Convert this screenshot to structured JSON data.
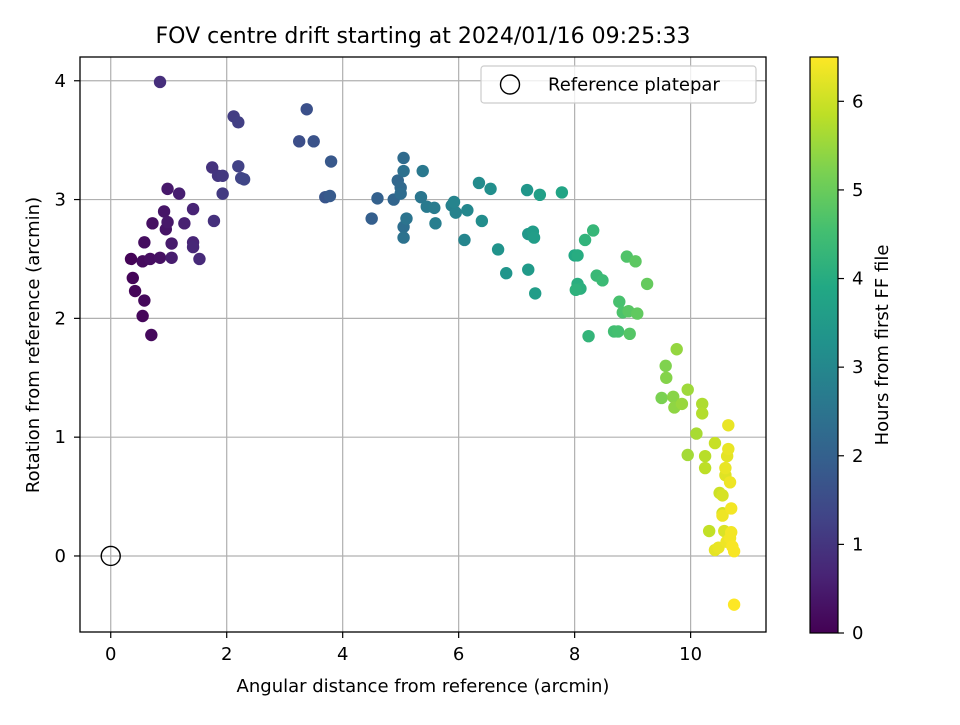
{
  "chart_data": {
    "type": "scatter",
    "title": "FOV centre drift starting at 2024/01/16 09:25:33",
    "xlabel": "Angular distance from reference (arcmin)",
    "ylabel": "Rotation from reference (arcmin)",
    "xlim": [
      -0.53,
      11.3
    ],
    "ylim": [
      -0.64,
      4.2
    ],
    "xticks": [
      0,
      2,
      4,
      6,
      8,
      10
    ],
    "yticks": [
      0,
      1,
      2,
      3,
      4
    ],
    "grid": true,
    "legend": {
      "placement": "top-right",
      "entries": [
        {
          "label": "Reference platepar",
          "marker": "open-circle",
          "x": 0,
          "y": 0
        }
      ]
    },
    "colorbar": {
      "label": "Hours from first FF file",
      "range": [
        0,
        6.5
      ],
      "ticks": [
        0,
        1,
        2,
        3,
        4,
        5,
        6
      ],
      "colormap": "viridis"
    },
    "series": [
      {
        "marker": "filled-circle",
        "points": [
          [
            0.35,
            2.5,
            0.05
          ],
          [
            0.38,
            2.34,
            0.08
          ],
          [
            0.42,
            2.23,
            0.1
          ],
          [
            0.55,
            2.02,
            0.12
          ],
          [
            0.58,
            2.15,
            0.14
          ],
          [
            0.7,
            1.86,
            0.15
          ],
          [
            0.55,
            2.48,
            0.18
          ],
          [
            0.58,
            2.64,
            0.22
          ],
          [
            0.68,
            2.5,
            0.25
          ],
          [
            0.72,
            2.8,
            0.28
          ],
          [
            0.85,
            2.51,
            0.3
          ],
          [
            0.95,
            2.75,
            0.35
          ],
          [
            0.92,
            2.9,
            0.38
          ],
          [
            0.98,
            2.81,
            0.42
          ],
          [
            0.98,
            3.09,
            0.45
          ],
          [
            1.05,
            2.63,
            0.48
          ],
          [
            1.05,
            2.51,
            0.52
          ],
          [
            1.18,
            3.05,
            0.55
          ],
          [
            1.27,
            2.8,
            0.6
          ],
          [
            1.42,
            2.92,
            0.65
          ],
          [
            1.42,
            2.64,
            0.68
          ],
          [
            1.42,
            2.6,
            0.72
          ],
          [
            1.53,
            2.5,
            0.78
          ],
          [
            0.85,
            3.99,
            0.85
          ],
          [
            1.78,
            2.82,
            0.9
          ],
          [
            1.75,
            3.27,
            0.95
          ],
          [
            1.85,
            3.2,
            1.0
          ],
          [
            1.93,
            3.2,
            1.05
          ],
          [
            1.93,
            3.05,
            1.1
          ],
          [
            2.12,
            3.7,
            1.15
          ],
          [
            2.2,
            3.65,
            1.2
          ],
          [
            2.2,
            3.28,
            1.25
          ],
          [
            2.25,
            3.18,
            1.3
          ],
          [
            2.3,
            3.17,
            1.35
          ],
          [
            3.25,
            3.49,
            1.55
          ],
          [
            3.38,
            3.76,
            1.6
          ],
          [
            3.5,
            3.49,
            1.65
          ],
          [
            3.7,
            3.02,
            1.72
          ],
          [
            3.8,
            3.32,
            1.78
          ],
          [
            3.78,
            3.03,
            1.82
          ],
          [
            4.5,
            2.84,
            1.95
          ],
          [
            4.6,
            3.01,
            2.0
          ],
          [
            4.88,
            3.0,
            2.1
          ],
          [
            4.95,
            3.16,
            2.15
          ],
          [
            5.0,
            3.1,
            2.2
          ],
          [
            5.05,
            3.35,
            2.25
          ],
          [
            5.0,
            3.05,
            2.3
          ],
          [
            5.05,
            2.77,
            2.35
          ],
          [
            5.05,
            3.24,
            2.4
          ],
          [
            5.05,
            2.68,
            2.45
          ],
          [
            5.1,
            2.84,
            2.5
          ],
          [
            5.35,
            3.02,
            2.55
          ],
          [
            5.38,
            3.24,
            2.6
          ],
          [
            5.45,
            2.94,
            2.65
          ],
          [
            5.58,
            2.93,
            2.7
          ],
          [
            5.6,
            2.8,
            2.75
          ],
          [
            5.88,
            2.95,
            2.8
          ],
          [
            5.95,
            2.89,
            2.85
          ],
          [
            5.92,
            2.98,
            2.9
          ],
          [
            6.1,
            2.66,
            2.95
          ],
          [
            6.15,
            2.91,
            3.0
          ],
          [
            6.35,
            3.14,
            3.1
          ],
          [
            6.4,
            2.82,
            3.15
          ],
          [
            6.55,
            3.09,
            3.2
          ],
          [
            6.68,
            2.58,
            3.3
          ],
          [
            6.82,
            2.38,
            3.35
          ],
          [
            7.18,
            3.08,
            3.4
          ],
          [
            7.2,
            2.71,
            3.45
          ],
          [
            7.2,
            2.41,
            3.5
          ],
          [
            7.28,
            2.73,
            3.55
          ],
          [
            7.3,
            2.68,
            3.58
          ],
          [
            7.32,
            2.21,
            3.6
          ],
          [
            7.4,
            3.04,
            3.65
          ],
          [
            7.78,
            3.06,
            3.8
          ],
          [
            8.0,
            2.53,
            3.9
          ],
          [
            8.05,
            2.53,
            4.0
          ],
          [
            8.05,
            2.29,
            4.05
          ],
          [
            8.1,
            2.25,
            4.1
          ],
          [
            8.02,
            2.24,
            4.15
          ],
          [
            8.18,
            2.66,
            4.2
          ],
          [
            8.24,
            1.85,
            4.25
          ],
          [
            8.32,
            2.74,
            4.3
          ],
          [
            8.38,
            2.36,
            4.35
          ],
          [
            8.48,
            2.32,
            4.4
          ],
          [
            8.68,
            1.89,
            4.5
          ],
          [
            8.75,
            1.89,
            4.55
          ],
          [
            8.77,
            2.14,
            4.6
          ],
          [
            8.83,
            2.05,
            4.65
          ],
          [
            8.9,
            2.52,
            4.7
          ],
          [
            8.95,
            1.87,
            4.75
          ],
          [
            8.93,
            2.06,
            4.8
          ],
          [
            9.05,
            2.48,
            4.85
          ],
          [
            9.08,
            2.04,
            4.9
          ],
          [
            9.25,
            2.29,
            4.95
          ],
          [
            9.5,
            1.33,
            5.2
          ],
          [
            9.57,
            1.6,
            5.25
          ],
          [
            9.58,
            1.5,
            5.3
          ],
          [
            9.7,
            1.34,
            5.35
          ],
          [
            9.72,
            1.25,
            5.4
          ],
          [
            9.76,
            1.74,
            5.45
          ],
          [
            9.85,
            1.28,
            5.5
          ],
          [
            9.95,
            1.4,
            5.55
          ],
          [
            9.95,
            0.85,
            5.6
          ],
          [
            10.1,
            1.03,
            5.65
          ],
          [
            10.2,
            1.28,
            5.7
          ],
          [
            10.2,
            1.2,
            5.75
          ],
          [
            10.25,
            0.84,
            5.8
          ],
          [
            10.25,
            0.74,
            5.85
          ],
          [
            10.32,
            0.21,
            5.9
          ],
          [
            10.42,
            0.95,
            5.95
          ],
          [
            10.5,
            0.53,
            6.0
          ],
          [
            10.55,
            0.36,
            6.05
          ],
          [
            10.55,
            0.51,
            6.1
          ],
          [
            10.58,
            0.21,
            6.15
          ],
          [
            10.6,
            0.68,
            6.2
          ],
          [
            10.63,
            0.84,
            6.25
          ],
          [
            10.6,
            0.74,
            6.3
          ],
          [
            10.42,
            0.05,
            6.25
          ],
          [
            10.48,
            0.07,
            6.3
          ],
          [
            10.55,
            0.34,
            6.35
          ],
          [
            10.62,
            0.12,
            6.35
          ],
          [
            10.65,
            1.1,
            6.3
          ],
          [
            10.65,
            0.9,
            6.3
          ],
          [
            10.68,
            0.62,
            6.35
          ],
          [
            10.68,
            0.15,
            6.4
          ],
          [
            10.7,
            0.2,
            6.4
          ],
          [
            10.7,
            0.4,
            6.4
          ],
          [
            10.72,
            0.08,
            6.45
          ],
          [
            10.75,
            0.04,
            6.45
          ],
          [
            10.75,
            -0.41,
            6.5
          ]
        ]
      }
    ]
  }
}
